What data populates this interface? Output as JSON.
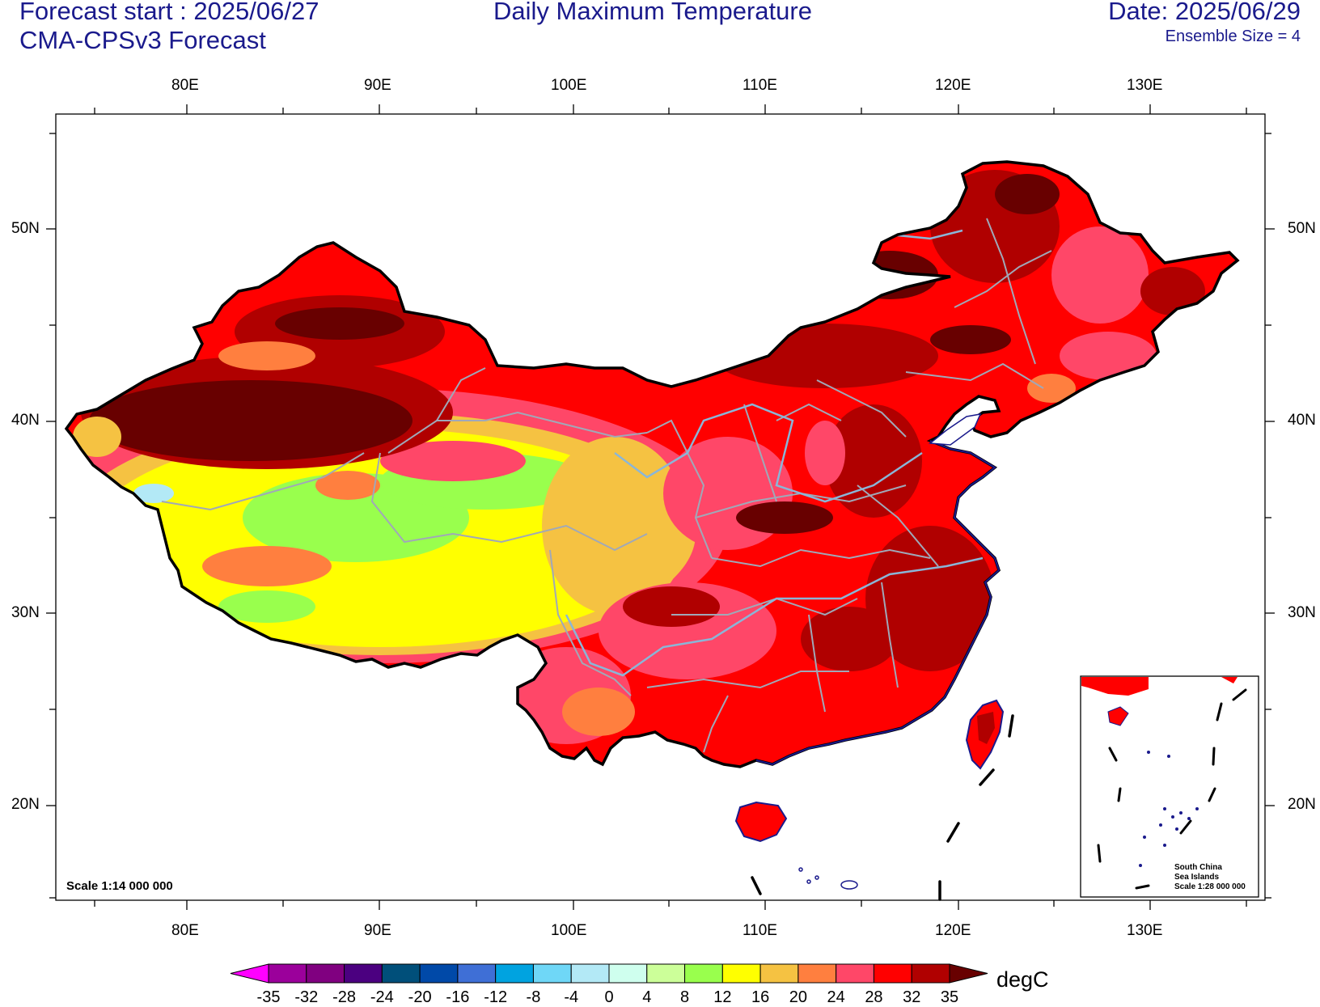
{
  "header": {
    "forecast_start": "Forecast start : 2025/06/27",
    "model": "CMA-CPSv3 Forecast",
    "title": "Daily Maximum Temperature",
    "date": "Date: 2025/06/29",
    "ensemble": "Ensemble Size = 4"
  },
  "axes": {
    "lon_labels": [
      "80E",
      "90E",
      "100E",
      "110E",
      "120E",
      "130E"
    ],
    "lat_labels": [
      "50N",
      "40N",
      "30N",
      "20N"
    ]
  },
  "colorbar": {
    "labels": [
      "-35",
      "-32",
      "-28",
      "-24",
      "-20",
      "-16",
      "-12",
      "-8",
      "-4",
      "0",
      "4",
      "8",
      "12",
      "16",
      "20",
      "24",
      "28",
      "32",
      "35"
    ],
    "colors": [
      "#ff00ff",
      "#9b009b",
      "#800080",
      "#4b0080",
      "#004f7a",
      "#0049a8",
      "#3f6fd6",
      "#00a3e0",
      "#6fd7f7",
      "#b3e9f6",
      "#cfffee",
      "#ccff99",
      "#99ff4d",
      "#ffff00",
      "#f5c242",
      "#ff7f3f",
      "#ff4768",
      "#ff0000",
      "#b00000",
      "#680000"
    ],
    "unit": "degC"
  },
  "map_notes": {
    "scale": "Scale 1:14 000 000",
    "inset_line1": "South China",
    "inset_line2": "Sea Islands",
    "inset_line3": "Scale 1:28 000 000"
  },
  "palette": {
    "land_border": "#000000",
    "province_line": "#a0a8b8",
    "river": "#8ab6d8",
    "coast": "#1a1a8c",
    "text": "#1a1a8c"
  }
}
